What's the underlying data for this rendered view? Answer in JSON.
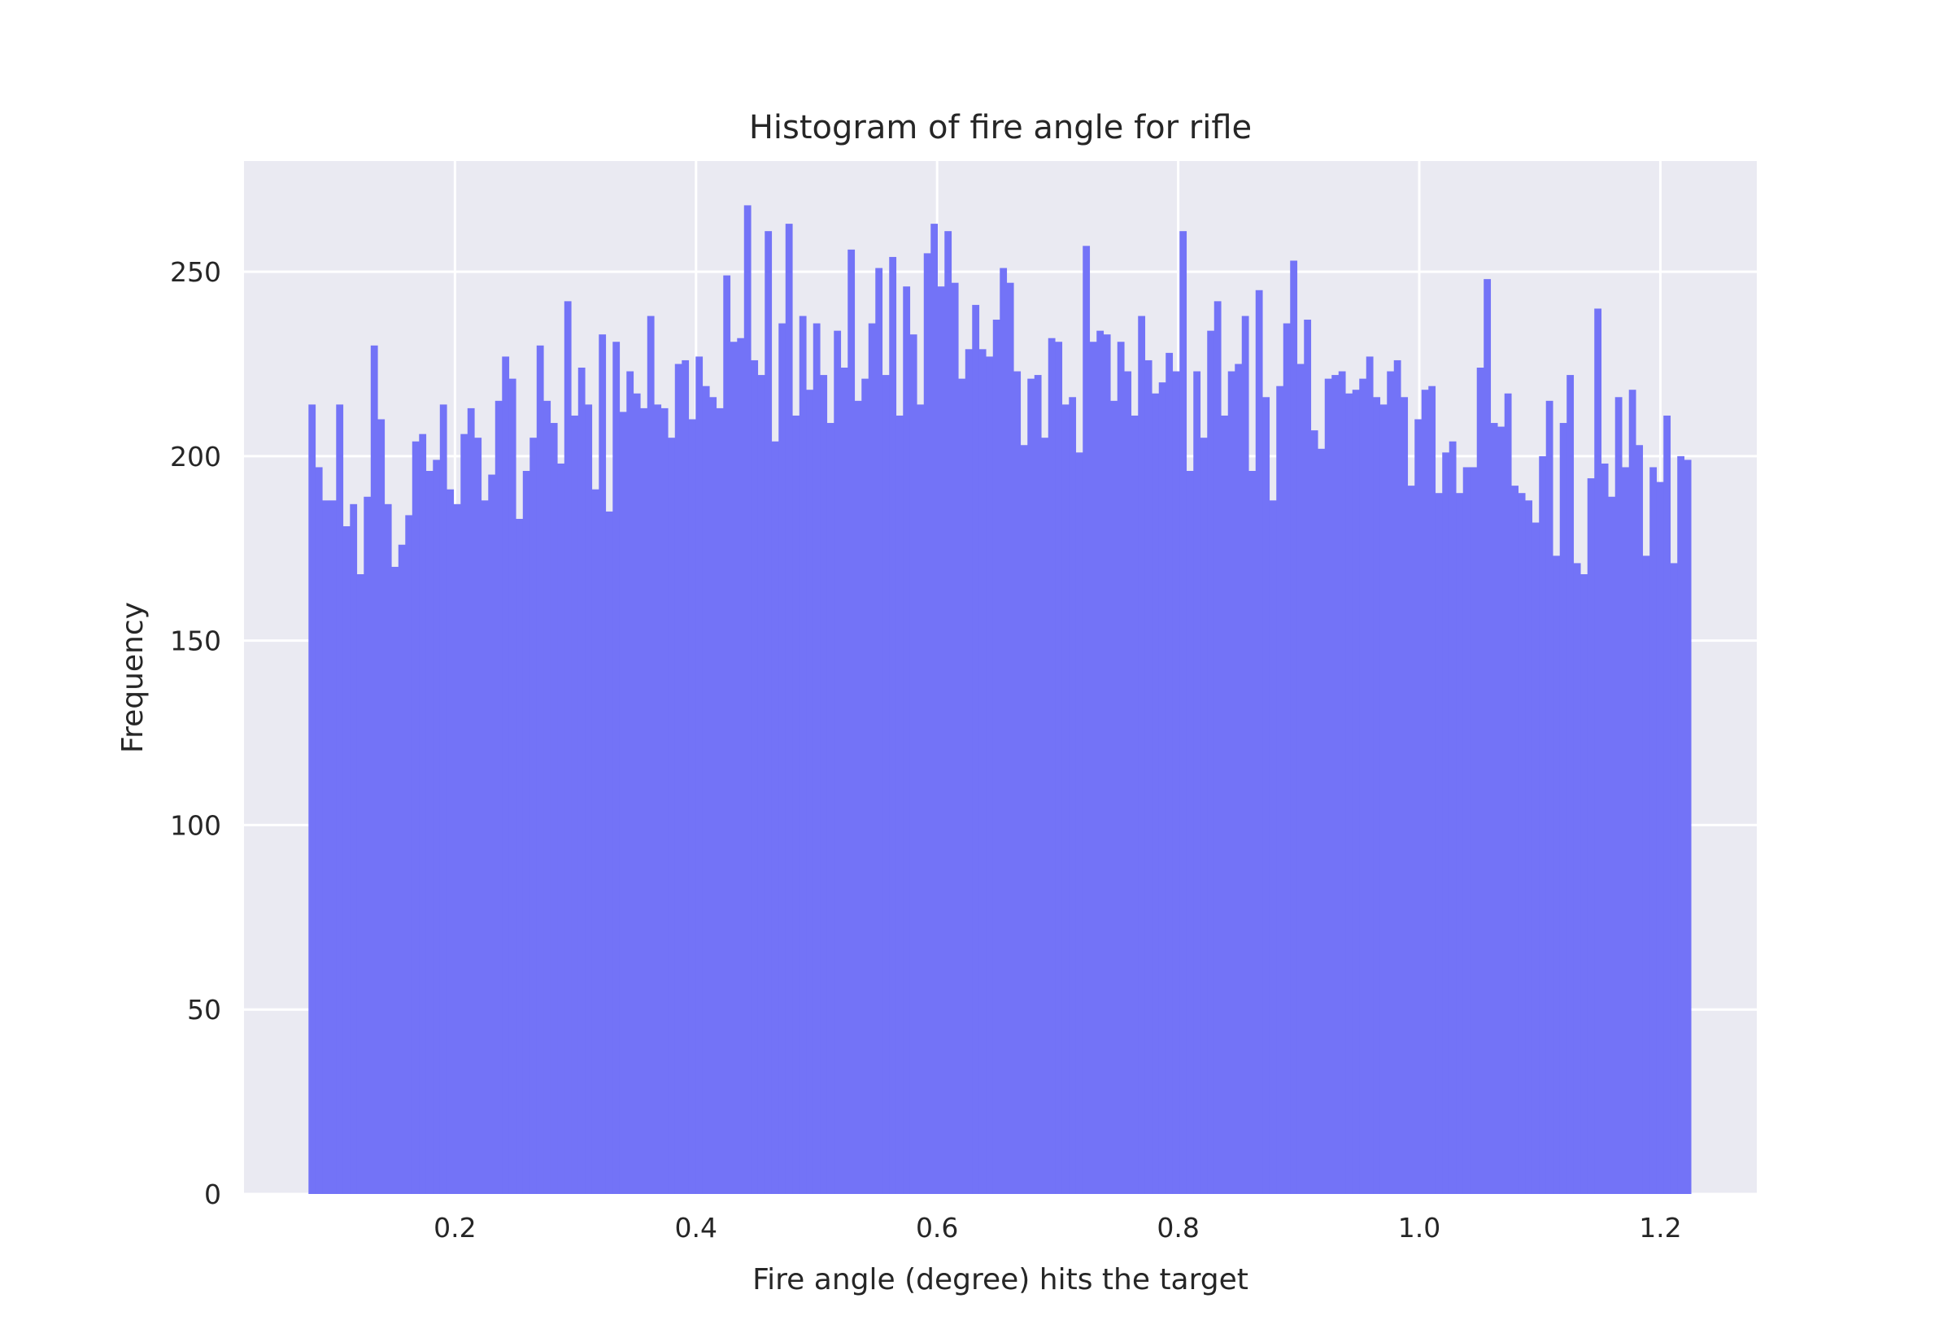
{
  "chart_data": {
    "type": "bar",
    "title": "Histogram of fire angle for rifle",
    "xlabel": "Fire angle (degree) hits the target",
    "ylabel": "Frequency",
    "xlim": [
      0.025,
      1.28
    ],
    "ylim": [
      0,
      280
    ],
    "x_ticks": [
      0.2,
      0.4,
      0.6,
      0.8,
      1.0,
      1.2
    ],
    "x_tick_labels": [
      "0.2",
      "0.4",
      "0.6",
      "0.8",
      "1.0",
      "1.2"
    ],
    "y_ticks": [
      0,
      50,
      100,
      150,
      200,
      250
    ],
    "y_tick_labels": [
      "0",
      "50",
      "100",
      "150",
      "200",
      "250"
    ],
    "grid": true,
    "bar_color": "#7373f7",
    "background_color": "#eaeaf2",
    "grid_color": "#ffffff",
    "bins": {
      "start": 0.0785,
      "end": 1.2255,
      "count": 200
    },
    "values": [
      214,
      197,
      188,
      188,
      214,
      181,
      187,
      168,
      189,
      230,
      210,
      187,
      170,
      176,
      184,
      204,
      206,
      196,
      199,
      214,
      191,
      187,
      206,
      213,
      205,
      188,
      195,
      215,
      227,
      221,
      183,
      196,
      205,
      230,
      215,
      209,
      198,
      242,
      211,
      224,
      214,
      191,
      233,
      185,
      231,
      212,
      223,
      217,
      213,
      238,
      214,
      213,
      205,
      225,
      226,
      210,
      227,
      219,
      216,
      213,
      249,
      231,
      232,
      268,
      226,
      222,
      261,
      204,
      236,
      263,
      211,
      238,
      218,
      236,
      222,
      209,
      234,
      224,
      256,
      215,
      221,
      236,
      251,
      222,
      254,
      211,
      246,
      233,
      214,
      255,
      263,
      246,
      261,
      247,
      221,
      229,
      241,
      229,
      227,
      237,
      251,
      247,
      223,
      203,
      221,
      222,
      205,
      232,
      231,
      214,
      216,
      201,
      257,
      231,
      234,
      233,
      215,
      231,
      223,
      211,
      238,
      226,
      217,
      220,
      228,
      223,
      261,
      196,
      223,
      205,
      234,
      242,
      211,
      223,
      225,
      238,
      196,
      245,
      216,
      188,
      219,
      236,
      253,
      225,
      237,
      207,
      202,
      221,
      222,
      223,
      217,
      218,
      221,
      227,
      216,
      214,
      223,
      226,
      216,
      192,
      210,
      218,
      219,
      190,
      201,
      204,
      190,
      197,
      197,
      224,
      248,
      209,
      208,
      217,
      192,
      190,
      188,
      182,
      200,
      215,
      173,
      209,
      222,
      171,
      168,
      194,
      240,
      198,
      189,
      216,
      197,
      218,
      203,
      173,
      197,
      193,
      211,
      171,
      200,
      199
    ]
  }
}
